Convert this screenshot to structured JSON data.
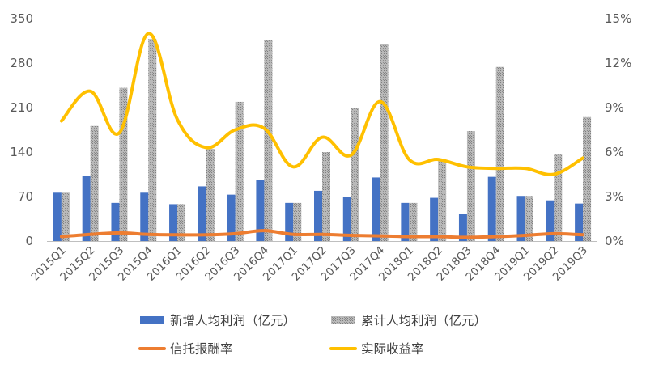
{
  "chart_data": {
    "type": "bar",
    "categories": [
      "2015Q1",
      "2015Q2",
      "2015Q3",
      "2015Q4",
      "2016Q1",
      "2016Q2",
      "2016Q3",
      "2016Q4",
      "2017Q1",
      "2017Q2",
      "2017Q3",
      "2017Q4",
      "2018Q1",
      "2018Q2",
      "2018Q3",
      "2018Q4",
      "2019Q1",
      "2019Q2",
      "2019Q3"
    ],
    "series": [
      {
        "name": "新增人均利润（亿元）",
        "type": "bar",
        "axis": "left",
        "color": "#4472c4",
        "values": [
          76,
          103,
          60,
          76,
          58,
          86,
          73,
          96,
          60,
          79,
          69,
          100,
          60,
          68,
          42,
          101,
          71,
          64,
          59
        ]
      },
      {
        "name": "累计人均利润（亿元）",
        "type": "bar",
        "axis": "left",
        "color": "#a5a5a5",
        "pattern": "hatched",
        "values": [
          76,
          181,
          241,
          318,
          58,
          145,
          219,
          316,
          60,
          140,
          210,
          310,
          60,
          128,
          173,
          274,
          71,
          136,
          195
        ]
      },
      {
        "name": "信托报酬率",
        "type": "line",
        "axis": "right",
        "color": "#ed7d31",
        "values": [
          0.3,
          0.45,
          0.55,
          0.45,
          0.42,
          0.42,
          0.5,
          0.7,
          0.45,
          0.45,
          0.38,
          0.35,
          0.3,
          0.3,
          0.25,
          0.3,
          0.38,
          0.5,
          0.42
        ]
      },
      {
        "name": "实际收益率",
        "type": "line",
        "axis": "right",
        "color": "#ffc000",
        "values": [
          8.1,
          10.1,
          7.3,
          14.0,
          8.2,
          6.3,
          7.5,
          7.6,
          5.0,
          7.0,
          5.8,
          9.4,
          5.5,
          5.5,
          5.0,
          4.9,
          4.9,
          4.5,
          5.6
        ]
      }
    ],
    "y_left": {
      "ylim": [
        0,
        350
      ],
      "ticks": [
        "0",
        "70",
        "140",
        "210",
        "280",
        "350"
      ],
      "tick_values": [
        0,
        70,
        140,
        210,
        280,
        350
      ]
    },
    "y_right": {
      "ylim": [
        0,
        15
      ],
      "ticks": [
        "0%",
        "3%",
        "6%",
        "9%",
        "12%",
        "15%"
      ],
      "tick_values": [
        0,
        3,
        6,
        9,
        12,
        15
      ]
    },
    "grid": false,
    "legend_position": "bottom"
  }
}
